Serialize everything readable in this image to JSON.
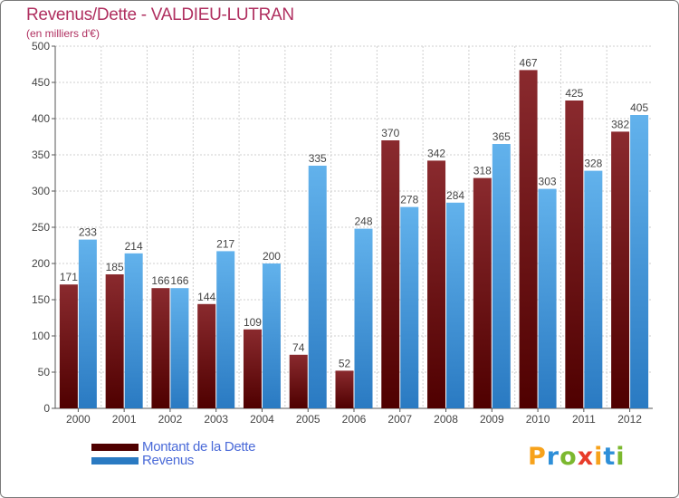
{
  "colors": {
    "dette_top": "#8a2a2e",
    "dette_bottom": "#4f0000",
    "revenus_top": "#62b2ec",
    "revenus_bottom": "#2a7ac2",
    "title": "#b03060",
    "legend_text": "#4a6ad8"
  },
  "chart_data": {
    "type": "bar",
    "title": "Revenus/Dette - VALDIEU-LUTRAN",
    "subtitle": "(en milliers d'€)",
    "categories": [
      "2000",
      "2001",
      "2002",
      "2003",
      "2004",
      "2005",
      "2006",
      "2007",
      "2008",
      "2009",
      "2010",
      "2011",
      "2012"
    ],
    "series": [
      {
        "name": "Montant de la Dette",
        "values": [
          171,
          185,
          166,
          144,
          109,
          74,
          52,
          370,
          342,
          318,
          467,
          425,
          382
        ]
      },
      {
        "name": "Revenus",
        "values": [
          233,
          214,
          166,
          217,
          200,
          335,
          248,
          278,
          284,
          365,
          303,
          328,
          405
        ]
      }
    ],
    "ylim": [
      0,
      500
    ],
    "yticks": [
      0,
      50,
      100,
      150,
      200,
      250,
      300,
      350,
      400,
      450,
      500
    ],
    "grid": true,
    "legend": "bottom-left"
  },
  "legend": {
    "items": [
      {
        "label": "Montant de la Dette"
      },
      {
        "label": "Revenus"
      }
    ]
  },
  "logo": {
    "letters": [
      "P",
      "r",
      "o",
      "x",
      "i",
      "t",
      "i"
    ],
    "colors": [
      "#f7a21b",
      "#2e8fd8",
      "#7cb82f",
      "#e83c2a",
      "#f7a21b",
      "#2e8fd8",
      "#7cb82f"
    ]
  }
}
